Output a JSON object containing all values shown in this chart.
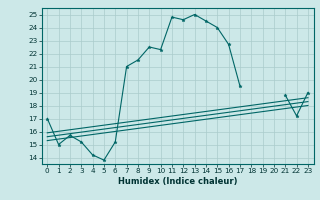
{
  "xlabel": "Humidex (Indice chaleur)",
  "xlim": [
    -0.5,
    23.5
  ],
  "ylim": [
    13.5,
    25.5
  ],
  "xticks": [
    0,
    1,
    2,
    3,
    4,
    5,
    6,
    7,
    8,
    9,
    10,
    11,
    12,
    13,
    14,
    15,
    16,
    17,
    18,
    19,
    20,
    21,
    22,
    23
  ],
  "yticks": [
    14,
    15,
    16,
    17,
    18,
    19,
    20,
    21,
    22,
    23,
    24,
    25
  ],
  "bg_color": "#cce8e8",
  "grid_color": "#aacccc",
  "line_color": "#006666",
  "lines": [
    {
      "x": [
        0,
        1,
        2,
        3,
        4,
        5,
        6,
        7,
        8,
        9,
        10,
        11,
        12,
        13,
        14,
        15,
        16,
        17,
        18,
        19,
        20,
        21,
        22,
        23
      ],
      "y": [
        17,
        15,
        15.7,
        15.2,
        14.2,
        13.8,
        15.2,
        21,
        21.5,
        22.5,
        22.3,
        24.8,
        24.6,
        25,
        24.5,
        24,
        22.7,
        19.5,
        null,
        null,
        null,
        18.8,
        17.2,
        19
      ],
      "marker": true
    },
    {
      "x": [
        0,
        23
      ],
      "y": [
        15.3,
        18.0
      ],
      "marker": false
    },
    {
      "x": [
        0,
        23
      ],
      "y": [
        15.6,
        18.3
      ],
      "marker": false
    },
    {
      "x": [
        0,
        23
      ],
      "y": [
        15.9,
        18.6
      ],
      "marker": false
    }
  ],
  "xlabel_fontsize": 6.0,
  "tick_fontsize": 5.2
}
